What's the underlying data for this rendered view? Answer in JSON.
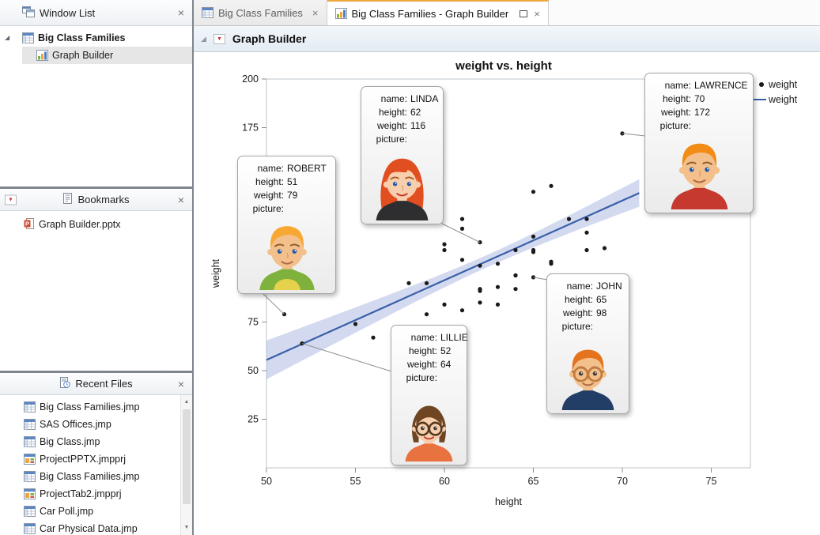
{
  "icons": {
    "close": "×",
    "red_triangle": "▼",
    "disclosure_expanded": "◢",
    "collapse_triangle": "◢",
    "scroll_up": "▲",
    "scroll_down": "▼"
  },
  "sidebar": {
    "window_list": {
      "title": "Window List",
      "tree": [
        {
          "label": "Big Class Families"
        },
        {
          "label": "Graph Builder"
        }
      ]
    },
    "bookmarks": {
      "title": "Bookmarks",
      "items": [
        {
          "label": "Graph Builder.pptx"
        }
      ]
    },
    "recent_files": {
      "title": "Recent Files",
      "items": [
        {
          "label": "Big Class Families.jmp",
          "icon": "data-table-icon"
        },
        {
          "label": "SAS Offices.jmp",
          "icon": "data-table-icon"
        },
        {
          "label": "Big Class.jmp",
          "icon": "data-table-icon"
        },
        {
          "label": "ProjectPPTX.jmpprj",
          "icon": "project-icon"
        },
        {
          "label": "Big Class Families.jmp",
          "icon": "data-table-icon"
        },
        {
          "label": "ProjectTab2.jmpprj",
          "icon": "project-icon"
        },
        {
          "label": "Car Poll.jmp",
          "icon": "data-table-icon"
        },
        {
          "label": "Car Physical Data.jmp",
          "icon": "data-table-icon"
        }
      ]
    }
  },
  "tabs": [
    {
      "label": "Big Class Families",
      "active": false
    },
    {
      "label": "Big Class Families - Graph Builder",
      "active": true
    }
  ],
  "report": {
    "title": "Graph Builder"
  },
  "chart_data": {
    "type": "scatter",
    "title": "weight vs. height",
    "xlabel": "height",
    "ylabel": "weight",
    "xlim": [
      50,
      77.2
    ],
    "ylim": [
      0,
      200
    ],
    "xticks": [
      50,
      55,
      60,
      65,
      70,
      75
    ],
    "yticks": [
      25,
      50,
      75,
      100,
      125,
      150,
      175,
      200
    ],
    "legend": [
      {
        "label": "weight",
        "marker": "point",
        "color": "#1a1a1a"
      },
      {
        "label": "weight",
        "marker": "line",
        "color": "#3a5fa8"
      }
    ],
    "points": [
      [
        59,
        95
      ],
      [
        61,
        123
      ],
      [
        55,
        74
      ],
      [
        66,
        145
      ],
      [
        52,
        64
      ],
      [
        60,
        84
      ],
      [
        61,
        128
      ],
      [
        51,
        79
      ],
      [
        60,
        112
      ],
      [
        61,
        107
      ],
      [
        56,
        67
      ],
      [
        65,
        98
      ],
      [
        63,
        105
      ],
      [
        58,
        95
      ],
      [
        59,
        79
      ],
      [
        61,
        81
      ],
      [
        62,
        91
      ],
      [
        65,
        142
      ],
      [
        63,
        84
      ],
      [
        62,
        85
      ],
      [
        63,
        93
      ],
      [
        64,
        99
      ],
      [
        65,
        119
      ],
      [
        64,
        92
      ],
      [
        68,
        112
      ],
      [
        64,
        99
      ],
      [
        69,
        113
      ],
      [
        62,
        92
      ],
      [
        64,
        112
      ],
      [
        67,
        128
      ],
      [
        65,
        111
      ],
      [
        66,
        105
      ],
      [
        62,
        104
      ],
      [
        66,
        106
      ],
      [
        65,
        112
      ],
      [
        60,
        115
      ],
      [
        68,
        128
      ],
      [
        62,
        116
      ],
      [
        68,
        121
      ],
      [
        70,
        172
      ]
    ],
    "fit": {
      "type": "linear",
      "slope": 4.1,
      "intercept": -149.5,
      "x_range": [
        50,
        70.95
      ],
      "line_color": "#3a5fa8",
      "band_color": "#9daede",
      "band": {
        "n": 40,
        "mean_x": 62.55,
        "sxx": 701.8,
        "scale": 20
      }
    },
    "annotation_labels": {
      "name": "name:",
      "height": "height:",
      "weight": "weight:",
      "picture": "picture:"
    },
    "annotations": [
      {
        "name": "ROBERT",
        "height": "51",
        "weight": "79"
      },
      {
        "name": "LINDA",
        "height": "62",
        "weight": "116"
      },
      {
        "name": "LAWRENCE",
        "height": "70",
        "weight": "172"
      },
      {
        "name": "JOHN",
        "height": "65",
        "weight": "98"
      },
      {
        "name": "LILLIE",
        "height": "52",
        "weight": "64"
      }
    ]
  },
  "avatars": {
    "ROBERT": {
      "skin": "#f3c08c",
      "hair": "#f7a833",
      "style": "boy",
      "shirt": "#7fb23d",
      "collar": "#e6d14a",
      "eyes": "#2257a8"
    },
    "LINDA": {
      "skin": "#f7cfae",
      "hair": "#e14e1f",
      "style": "long",
      "shirt": "#2e2e30",
      "eyes": "#2257a8",
      "lips": "#c43b2e",
      "brow": "#b05a20"
    },
    "LAWRENCE": {
      "skin": "#f3c08c",
      "hair": "#f28c16",
      "style": "boy",
      "shirt": "#c6392f",
      "eyes": "#2257a8"
    },
    "JOHN": {
      "skin": "#f3c08c",
      "hair": "#e5731d",
      "style": "boy",
      "shirt": "#223e66",
      "glasses": "#c07c3e",
      "eyes": "#3a3a3a"
    },
    "LILLIE": {
      "skin": "#f7cfae",
      "hair": "#6f4522",
      "style": "bob",
      "shirt": "#e97340",
      "glasses": "#53381f",
      "eyes": "#3a3a3a",
      "lips": "#c43b2e",
      "brow": "#6f4522"
    }
  }
}
